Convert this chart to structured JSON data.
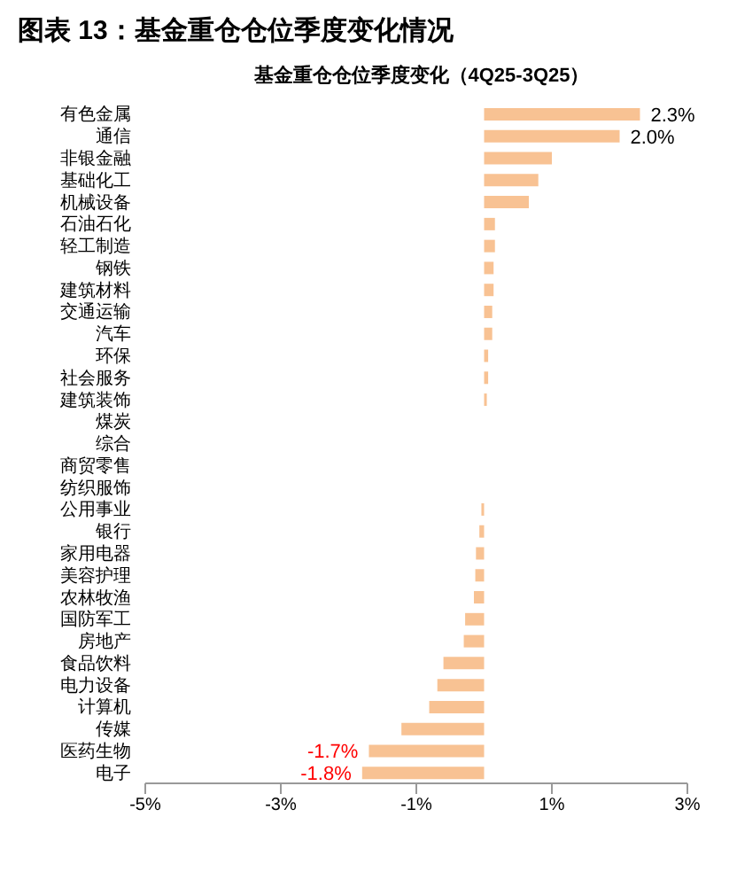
{
  "chart_data": {
    "type": "bar",
    "orientation": "horizontal",
    "title": "图表 13：基金重仓仓位季度变化情况",
    "subtitle": "基金重仓仓位季度变化（4Q25-3Q25）",
    "categories": [
      "有色金属",
      "通信",
      "非银金融",
      "基础化工",
      "机械设备",
      "石油石化",
      "轻工制造",
      "钢铁",
      "建筑材料",
      "交通运输",
      "汽车",
      "环保",
      "社会服务",
      "建筑装饰",
      "煤炭",
      "综合",
      "商贸零售",
      "纺织服饰",
      "公用事业",
      "银行",
      "家用电器",
      "美容护理",
      "农林牧渔",
      "国防军工",
      "房地产",
      "食品饮料",
      "电力设备",
      "计算机",
      "传媒",
      "医药生物",
      "电子"
    ],
    "values": [
      2.3,
      2.0,
      1.0,
      0.8,
      0.66,
      0.16,
      0.16,
      0.14,
      0.14,
      0.12,
      0.12,
      0.06,
      0.06,
      0.04,
      0,
      0,
      0,
      0,
      -0.04,
      -0.07,
      -0.12,
      -0.13,
      -0.15,
      -0.28,
      -0.3,
      -0.6,
      -0.69,
      -0.81,
      -1.22,
      -1.7,
      -1.8
    ],
    "value_labels": [
      "2.3%",
      "2.0%",
      null,
      null,
      null,
      null,
      null,
      null,
      null,
      null,
      null,
      null,
      null,
      null,
      null,
      null,
      null,
      null,
      null,
      null,
      null,
      null,
      null,
      null,
      null,
      null,
      null,
      null,
      null,
      "-1.7%",
      "-1.8%"
    ],
    "color": "#f8c293",
    "xlim": [
      -5,
      3
    ],
    "xticks": [
      {
        "value": -5,
        "label": "-5%"
      },
      {
        "value": -3,
        "label": "-3%"
      },
      {
        "value": -1,
        "label": "-1%"
      },
      {
        "value": 1,
        "label": "1%"
      },
      {
        "value": 3,
        "label": "3%"
      }
    ],
    "data_labels": false
  }
}
